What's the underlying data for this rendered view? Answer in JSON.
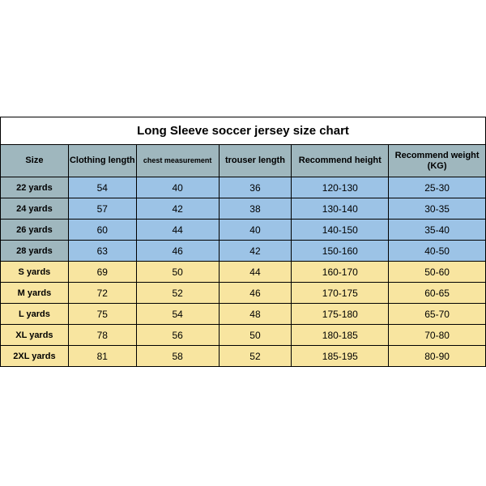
{
  "table": {
    "title": "Long Sleeve soccer jersey size chart",
    "headers": [
      "Size",
      "Clothing length",
      "chest measurement",
      "trouser length",
      "Recommend height",
      "Recommend weight (KG)"
    ],
    "col_widths_pct": [
      14,
      14,
      17,
      15,
      20,
      20
    ],
    "header_bg": "#9fb7be",
    "group_a_bg": "#9cc3e6",
    "group_a_size_bg": "#9fb7be",
    "group_b_bg": "#f8e5a0",
    "border_color": "#000000",
    "title_fontsize": 15,
    "header_fontsize": 11,
    "body_fontsize": 12,
    "rows": [
      {
        "group": "a",
        "cells": [
          "22 yards",
          "54",
          "40",
          "36",
          "120-130",
          "25-30"
        ]
      },
      {
        "group": "a",
        "cells": [
          "24 yards",
          "57",
          "42",
          "38",
          "130-140",
          "30-35"
        ]
      },
      {
        "group": "a",
        "cells": [
          "26 yards",
          "60",
          "44",
          "40",
          "140-150",
          "35-40"
        ]
      },
      {
        "group": "a",
        "cells": [
          "28 yards",
          "63",
          "46",
          "42",
          "150-160",
          "40-50"
        ]
      },
      {
        "group": "b",
        "cells": [
          "S yards",
          "69",
          "50",
          "44",
          "160-170",
          "50-60"
        ]
      },
      {
        "group": "b",
        "cells": [
          "M yards",
          "72",
          "52",
          "46",
          "170-175",
          "60-65"
        ]
      },
      {
        "group": "b",
        "cells": [
          "L yards",
          "75",
          "54",
          "48",
          "175-180",
          "65-70"
        ]
      },
      {
        "group": "b",
        "cells": [
          "XL yards",
          "78",
          "56",
          "50",
          "180-185",
          "70-80"
        ]
      },
      {
        "group": "b",
        "cells": [
          "2XL yards",
          "81",
          "58",
          "52",
          "185-195",
          "80-90"
        ]
      }
    ]
  }
}
